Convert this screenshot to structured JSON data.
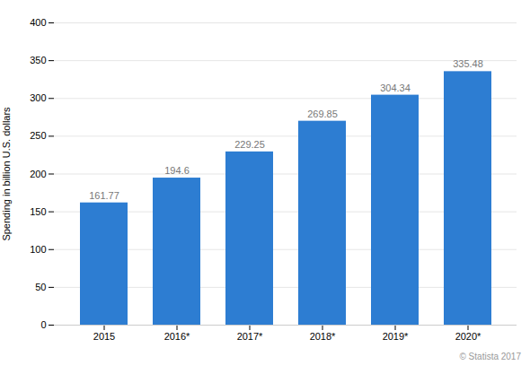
{
  "chart_data": {
    "type": "bar",
    "categories": [
      "2015",
      "2016*",
      "2017*",
      "2018*",
      "2019*",
      "2020*"
    ],
    "values": [
      161.77,
      194.6,
      229.25,
      269.85,
      304.34,
      335.48
    ],
    "color": "#2d7dd2",
    "ylabel": "Spending in billion U.S. dollars",
    "ylim": [
      0,
      400
    ],
    "yticks": [
      0,
      50,
      100,
      150,
      200,
      250,
      300,
      350,
      400
    ],
    "grid": true,
    "data_labels": true,
    "annotations": [
      "© Statista 2017"
    ]
  }
}
